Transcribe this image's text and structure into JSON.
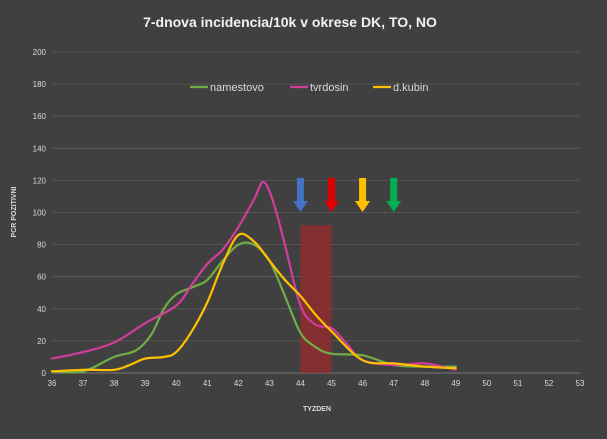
{
  "chart_data": {
    "type": "line",
    "title": "7-dnova incidencia/10k v okrese DK, TO, NO",
    "xlabel": "TYZDEN",
    "ylabel": "PCR POZITIVNI",
    "xlim": [
      36,
      53
    ],
    "ylim": [
      0,
      200
    ],
    "x_ticks": [
      36,
      37,
      38,
      39,
      40,
      41,
      42,
      43,
      44,
      45,
      46,
      47,
      48,
      49,
      50,
      51,
      52,
      53
    ],
    "y_ticks": [
      0,
      20,
      40,
      60,
      80,
      100,
      120,
      140,
      160,
      180,
      200
    ],
    "grid": true,
    "legend_position": "top",
    "series": [
      {
        "name": "namestovo",
        "color": "#70ad47",
        "points": [
          [
            36,
            1
          ],
          [
            37,
            1
          ],
          [
            38,
            10
          ],
          [
            38.7,
            14
          ],
          [
            39.2,
            24
          ],
          [
            39.6,
            40
          ],
          [
            40,
            49
          ],
          [
            40.6,
            54
          ],
          [
            41,
            58
          ],
          [
            41.5,
            70
          ],
          [
            42,
            80
          ],
          [
            42.5,
            80
          ],
          [
            43,
            70
          ],
          [
            43.5,
            48
          ],
          [
            44,
            25
          ],
          [
            44.5,
            16
          ],
          [
            45,
            12
          ],
          [
            46,
            11
          ],
          [
            47,
            5
          ],
          [
            48,
            4
          ],
          [
            49,
            4
          ]
        ]
      },
      {
        "name": "tvrdosin",
        "color": "#d23c9c",
        "points": [
          [
            36,
            9
          ],
          [
            37,
            13
          ],
          [
            38,
            19
          ],
          [
            39,
            31
          ],
          [
            40,
            42
          ],
          [
            40.5,
            55
          ],
          [
            41,
            68
          ],
          [
            41.5,
            77
          ],
          [
            42,
            91
          ],
          [
            42.5,
            108
          ],
          [
            42.8,
            119
          ],
          [
            43.1,
            108
          ],
          [
            43.5,
            80
          ],
          [
            44,
            42
          ],
          [
            44.5,
            30
          ],
          [
            45,
            28
          ],
          [
            45.5,
            18
          ],
          [
            46,
            8
          ],
          [
            47,
            5
          ],
          [
            48,
            6
          ],
          [
            49,
            2
          ]
        ]
      },
      {
        "name": "d.kubin",
        "color": "#ffc000",
        "points": [
          [
            36,
            1
          ],
          [
            37,
            2
          ],
          [
            38,
            2
          ],
          [
            38.5,
            5
          ],
          [
            39,
            9
          ],
          [
            39.6,
            10
          ],
          [
            40,
            13
          ],
          [
            40.5,
            26
          ],
          [
            41,
            44
          ],
          [
            41.5,
            68
          ],
          [
            42,
            86
          ],
          [
            42.5,
            82
          ],
          [
            43,
            70
          ],
          [
            43.5,
            58
          ],
          [
            44,
            48
          ],
          [
            44.5,
            36
          ],
          [
            45,
            26
          ],
          [
            46,
            8
          ],
          [
            47,
            6
          ],
          [
            48,
            4
          ],
          [
            49,
            3
          ]
        ]
      }
    ],
    "highlight_band": {
      "x_range": [
        44,
        45
      ],
      "y_top": 92,
      "color": "#a02828"
    },
    "arrows": [
      {
        "x": 44,
        "color": "#4472c4"
      },
      {
        "x": 45,
        "color": "#e00000"
      },
      {
        "x": 46,
        "color": "#ffc000"
      },
      {
        "x": 47,
        "color": "#00b050"
      }
    ]
  }
}
